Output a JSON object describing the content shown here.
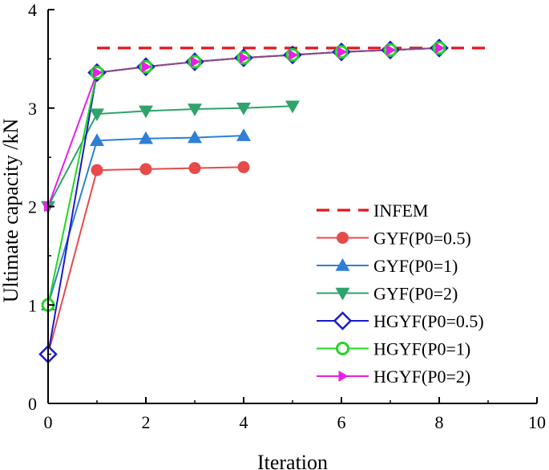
{
  "chart_data": {
    "type": "line",
    "title": "",
    "xlabel": "Iteration",
    "ylabel": "Ultimate capacity /kN",
    "xlim": [
      0,
      10
    ],
    "ylim": [
      0,
      4
    ],
    "xticks": [
      "0",
      "2",
      "4",
      "6",
      "8",
      "10"
    ],
    "yticks": [
      "0",
      "1",
      "2",
      "3",
      "4"
    ],
    "legend_position": "right-middle",
    "series": [
      {
        "name": "INFEM",
        "color": "#e8141b",
        "marker": "none",
        "dash": true,
        "x": [
          1,
          9
        ],
        "y": [
          3.61,
          3.61
        ]
      },
      {
        "name": "GYF(P0=0.5)",
        "color": "#e84a4a",
        "marker": "circle",
        "x": [
          0,
          1,
          2,
          3,
          4
        ],
        "y": [
          0.5,
          2.37,
          2.38,
          2.39,
          2.4
        ]
      },
      {
        "name": "GYF(P0=1)",
        "color": "#2e7fd6",
        "marker": "triangle-up",
        "x": [
          0,
          1,
          2,
          3,
          4
        ],
        "y": [
          1.0,
          2.67,
          2.69,
          2.7,
          2.72
        ]
      },
      {
        "name": "GYF(P0=2)",
        "color": "#2ea36b",
        "marker": "triangle-down",
        "x": [
          0,
          1,
          2,
          3,
          4,
          5
        ],
        "y": [
          2.0,
          2.94,
          2.97,
          2.99,
          3.0,
          3.02
        ]
      },
      {
        "name": "HGYF(P0=0.5)",
        "color": "#1a1acc",
        "marker": "diamond",
        "x": [
          0,
          1,
          2,
          3,
          4,
          5,
          6,
          7,
          8
        ],
        "y": [
          0.5,
          3.36,
          3.42,
          3.47,
          3.51,
          3.54,
          3.57,
          3.59,
          3.61
        ]
      },
      {
        "name": "HGYF(P0=1)",
        "color": "#22d622",
        "marker": "circle-open",
        "x": [
          0,
          1,
          2,
          3,
          4,
          5,
          6,
          7,
          8
        ],
        "y": [
          1.0,
          3.36,
          3.42,
          3.47,
          3.51,
          3.54,
          3.57,
          3.59,
          3.61
        ]
      },
      {
        "name": "HGYF(P0=2)",
        "color": "#e81ee8",
        "marker": "triangle-right",
        "x": [
          0,
          1,
          2,
          3,
          4,
          5,
          6,
          7,
          8
        ],
        "y": [
          2.0,
          3.36,
          3.42,
          3.47,
          3.51,
          3.54,
          3.57,
          3.59,
          3.61
        ]
      }
    ],
    "connector_color": "#8a4a8a"
  }
}
